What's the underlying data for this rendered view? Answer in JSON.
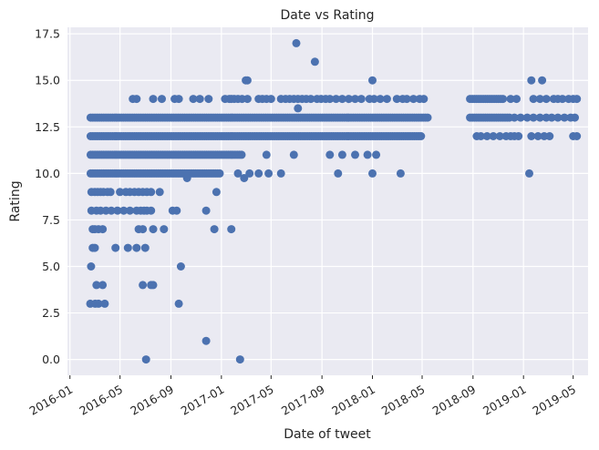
{
  "chart_data": {
    "type": "scatter",
    "title": "Date vs Rating",
    "xlabel": "Date of tweet",
    "ylabel": "Rating",
    "x_axis_type": "date",
    "xlim": [
      "2015-12-26",
      "2019-06-06"
    ],
    "ylim": [
      -0.85,
      17.85
    ],
    "xticks": [
      "2016-01",
      "2016-05",
      "2016-09",
      "2017-01",
      "2017-05",
      "2017-09",
      "2018-01",
      "2018-05",
      "2018-09",
      "2019-01",
      "2019-05"
    ],
    "yticks": [
      "0.0",
      "2.5",
      "5.0",
      "7.5",
      "10.0",
      "12.5",
      "15.0",
      "17.5"
    ],
    "grid": true,
    "background_color": "#eaeaf2",
    "marker_color": "#4c72b0",
    "dense_bands": [
      {
        "y": 13,
        "start": "2016-02-20",
        "end": "2018-05-15"
      },
      {
        "y": 12,
        "start": "2016-02-20",
        "end": "2018-04-30"
      },
      {
        "y": 11,
        "start": "2016-02-20",
        "end": "2017-02-20"
      },
      {
        "y": 10,
        "start": "2016-02-20",
        "end": "2016-12-31"
      },
      {
        "y": 13,
        "start": "2018-08-25",
        "end": "2018-11-30"
      },
      {
        "y": 14,
        "start": "2018-08-25",
        "end": "2018-11-15"
      }
    ],
    "points": [
      {
        "x": "2016-02-19",
        "y": 3
      },
      {
        "x": "2016-03-02",
        "y": 3
      },
      {
        "x": "2016-03-10",
        "y": 3
      },
      {
        "x": "2016-03-25",
        "y": 3
      },
      {
        "x": "2016-02-21",
        "y": 5
      },
      {
        "x": "2016-02-25",
        "y": 6
      },
      {
        "x": "2016-03-01",
        "y": 6
      },
      {
        "x": "2016-04-20",
        "y": 6
      },
      {
        "x": "2016-05-20",
        "y": 6
      },
      {
        "x": "2016-06-10",
        "y": 6
      },
      {
        "x": "2016-07-01",
        "y": 6
      },
      {
        "x": "2016-03-05",
        "y": 4
      },
      {
        "x": "2016-03-20",
        "y": 4
      },
      {
        "x": "2016-06-25",
        "y": 4
      },
      {
        "x": "2016-07-15",
        "y": 4
      },
      {
        "x": "2016-07-20",
        "y": 4
      },
      {
        "x": "2016-02-25",
        "y": 7
      },
      {
        "x": "2016-03-01",
        "y": 7
      },
      {
        "x": "2016-03-10",
        "y": 7
      },
      {
        "x": "2016-03-20",
        "y": 7
      },
      {
        "x": "2016-06-15",
        "y": 7
      },
      {
        "x": "2016-06-25",
        "y": 7
      },
      {
        "x": "2016-07-20",
        "y": 7
      },
      {
        "x": "2016-08-15",
        "y": 7
      },
      {
        "x": "2016-12-15",
        "y": 7
      },
      {
        "x": "2017-01-25",
        "y": 7
      },
      {
        "x": "2016-02-22",
        "y": 8
      },
      {
        "x": "2016-03-05",
        "y": 8
      },
      {
        "x": "2016-03-15",
        "y": 8
      },
      {
        "x": "2016-03-28",
        "y": 8
      },
      {
        "x": "2016-04-10",
        "y": 8
      },
      {
        "x": "2016-04-25",
        "y": 8
      },
      {
        "x": "2016-05-10",
        "y": 8
      },
      {
        "x": "2016-05-25",
        "y": 8
      },
      {
        "x": "2016-06-10",
        "y": 8
      },
      {
        "x": "2016-06-20",
        "y": 8
      },
      {
        "x": "2016-06-28",
        "y": 8
      },
      {
        "x": "2016-07-05",
        "y": 8
      },
      {
        "x": "2016-07-15",
        "y": 8
      },
      {
        "x": "2016-09-05",
        "y": 8
      },
      {
        "x": "2016-09-15",
        "y": 8
      },
      {
        "x": "2016-11-25",
        "y": 8
      },
      {
        "x": "2016-02-22",
        "y": 9
      },
      {
        "x": "2016-03-01",
        "y": 9
      },
      {
        "x": "2016-03-08",
        "y": 9
      },
      {
        "x": "2016-03-15",
        "y": 9
      },
      {
        "x": "2016-03-22",
        "y": 9
      },
      {
        "x": "2016-04-01",
        "y": 9
      },
      {
        "x": "2016-04-08",
        "y": 9
      },
      {
        "x": "2016-05-01",
        "y": 9
      },
      {
        "x": "2016-05-15",
        "y": 9
      },
      {
        "x": "2016-05-25",
        "y": 9
      },
      {
        "x": "2016-06-05",
        "y": 9
      },
      {
        "x": "2016-06-15",
        "y": 9
      },
      {
        "x": "2016-06-25",
        "y": 9
      },
      {
        "x": "2016-07-05",
        "y": 9
      },
      {
        "x": "2016-07-15",
        "y": 9
      },
      {
        "x": "2016-08-05",
        "y": 9
      },
      {
        "x": "2016-12-20",
        "y": 9
      },
      {
        "x": "2016-10-10",
        "y": 9.75
      },
      {
        "x": "2017-02-25",
        "y": 9.75
      },
      {
        "x": "2017-02-10",
        "y": 10
      },
      {
        "x": "2017-03-10",
        "y": 10
      },
      {
        "x": "2017-04-01",
        "y": 10
      },
      {
        "x": "2017-04-25",
        "y": 10
      },
      {
        "x": "2017-05-25",
        "y": 10
      },
      {
        "x": "2017-10-10",
        "y": 10
      },
      {
        "x": "2018-01-01",
        "y": 10
      },
      {
        "x": "2018-03-10",
        "y": 10
      },
      {
        "x": "2019-01-15",
        "y": 10
      },
      {
        "x": "2017-04-20",
        "y": 11
      },
      {
        "x": "2017-06-25",
        "y": 11
      },
      {
        "x": "2017-09-20",
        "y": 11
      },
      {
        "x": "2017-10-20",
        "y": 11
      },
      {
        "x": "2017-11-20",
        "y": 11
      },
      {
        "x": "2017-12-20",
        "y": 11
      },
      {
        "x": "2018-01-10",
        "y": 11
      },
      {
        "x": "2016-09-25",
        "y": 5
      },
      {
        "x": "2016-09-20",
        "y": 3
      },
      {
        "x": "2016-11-25",
        "y": 1
      },
      {
        "x": "2016-07-03",
        "y": 0
      },
      {
        "x": "2017-02-15",
        "y": 0
      },
      {
        "x": "2017-03-01",
        "y": 15
      },
      {
        "x": "2017-03-05",
        "y": 15
      },
      {
        "x": "2017-07-01",
        "y": 17
      },
      {
        "x": "2017-08-15",
        "y": 16
      },
      {
        "x": "2017-07-05",
        "y": 13.5
      },
      {
        "x": "2018-01-01",
        "y": 15
      },
      {
        "x": "2016-06-01",
        "y": 14
      },
      {
        "x": "2016-06-10",
        "y": 14
      },
      {
        "x": "2016-07-20",
        "y": 14
      },
      {
        "x": "2016-08-10",
        "y": 14
      },
      {
        "x": "2016-09-10",
        "y": 14
      },
      {
        "x": "2016-09-20",
        "y": 14
      },
      {
        "x": "2016-10-25",
        "y": 14
      },
      {
        "x": "2016-11-10",
        "y": 14
      },
      {
        "x": "2016-12-01",
        "y": 14
      },
      {
        "x": "2017-01-10",
        "y": 14
      },
      {
        "x": "2017-01-20",
        "y": 14
      },
      {
        "x": "2017-01-25",
        "y": 14
      },
      {
        "x": "2017-02-01",
        "y": 14
      },
      {
        "x": "2017-02-10",
        "y": 14
      },
      {
        "x": "2017-02-20",
        "y": 14
      },
      {
        "x": "2017-03-05",
        "y": 14
      },
      {
        "x": "2017-04-01",
        "y": 14
      },
      {
        "x": "2017-04-10",
        "y": 14
      },
      {
        "x": "2017-04-20",
        "y": 14
      },
      {
        "x": "2017-05-01",
        "y": 14
      },
      {
        "x": "2017-05-25",
        "y": 14
      },
      {
        "x": "2017-06-05",
        "y": 14
      },
      {
        "x": "2017-06-15",
        "y": 14
      },
      {
        "x": "2017-06-25",
        "y": 14
      },
      {
        "x": "2017-07-05",
        "y": 14
      },
      {
        "x": "2017-07-15",
        "y": 14
      },
      {
        "x": "2017-07-25",
        "y": 14
      },
      {
        "x": "2017-08-05",
        "y": 14
      },
      {
        "x": "2017-08-20",
        "y": 14
      },
      {
        "x": "2017-08-30",
        "y": 14
      },
      {
        "x": "2017-09-10",
        "y": 14
      },
      {
        "x": "2017-09-20",
        "y": 14
      },
      {
        "x": "2017-10-05",
        "y": 14
      },
      {
        "x": "2017-10-20",
        "y": 14
      },
      {
        "x": "2017-11-05",
        "y": 14
      },
      {
        "x": "2017-11-20",
        "y": 14
      },
      {
        "x": "2017-12-05",
        "y": 14
      },
      {
        "x": "2017-12-25",
        "y": 14
      },
      {
        "x": "2018-01-05",
        "y": 14
      },
      {
        "x": "2018-01-20",
        "y": 14
      },
      {
        "x": "2018-02-05",
        "y": 14
      },
      {
        "x": "2018-03-01",
        "y": 14
      },
      {
        "x": "2018-03-15",
        "y": 14
      },
      {
        "x": "2018-03-25",
        "y": 14
      },
      {
        "x": "2018-04-10",
        "y": 14
      },
      {
        "x": "2018-04-25",
        "y": 14
      },
      {
        "x": "2018-05-05",
        "y": 14
      },
      {
        "x": "2018-09-10",
        "y": 12
      },
      {
        "x": "2018-09-20",
        "y": 12
      },
      {
        "x": "2018-10-05",
        "y": 12
      },
      {
        "x": "2018-10-20",
        "y": 12
      },
      {
        "x": "2018-11-05",
        "y": 12
      },
      {
        "x": "2018-11-20",
        "y": 12
      },
      {
        "x": "2018-12-01",
        "y": 12
      },
      {
        "x": "2018-12-10",
        "y": 12
      },
      {
        "x": "2018-12-20",
        "y": 12
      },
      {
        "x": "2019-01-20",
        "y": 12
      },
      {
        "x": "2019-02-05",
        "y": 12
      },
      {
        "x": "2019-02-20",
        "y": 12
      },
      {
        "x": "2019-03-05",
        "y": 12
      },
      {
        "x": "2019-05-01",
        "y": 12
      },
      {
        "x": "2019-05-10",
        "y": 12
      },
      {
        "x": "2018-12-10",
        "y": 13
      },
      {
        "x": "2018-12-25",
        "y": 13
      },
      {
        "x": "2019-01-10",
        "y": 13
      },
      {
        "x": "2019-01-25",
        "y": 13
      },
      {
        "x": "2019-02-10",
        "y": 13
      },
      {
        "x": "2019-02-25",
        "y": 13
      },
      {
        "x": "2019-03-10",
        "y": 13
      },
      {
        "x": "2019-03-25",
        "y": 13
      },
      {
        "x": "2019-04-10",
        "y": 13
      },
      {
        "x": "2019-04-25",
        "y": 13
      },
      {
        "x": "2019-05-05",
        "y": 13
      },
      {
        "x": "2018-12-01",
        "y": 14
      },
      {
        "x": "2018-12-15",
        "y": 14
      },
      {
        "x": "2019-01-25",
        "y": 14
      },
      {
        "x": "2019-02-10",
        "y": 14
      },
      {
        "x": "2019-02-25",
        "y": 14
      },
      {
        "x": "2019-03-15",
        "y": 14
      },
      {
        "x": "2019-03-25",
        "y": 14
      },
      {
        "x": "2019-04-05",
        "y": 14
      },
      {
        "x": "2019-04-20",
        "y": 14
      },
      {
        "x": "2019-05-01",
        "y": 14
      },
      {
        "x": "2019-05-10",
        "y": 14
      },
      {
        "x": "2019-01-20",
        "y": 15
      },
      {
        "x": "2019-02-15",
        "y": 15
      }
    ]
  }
}
